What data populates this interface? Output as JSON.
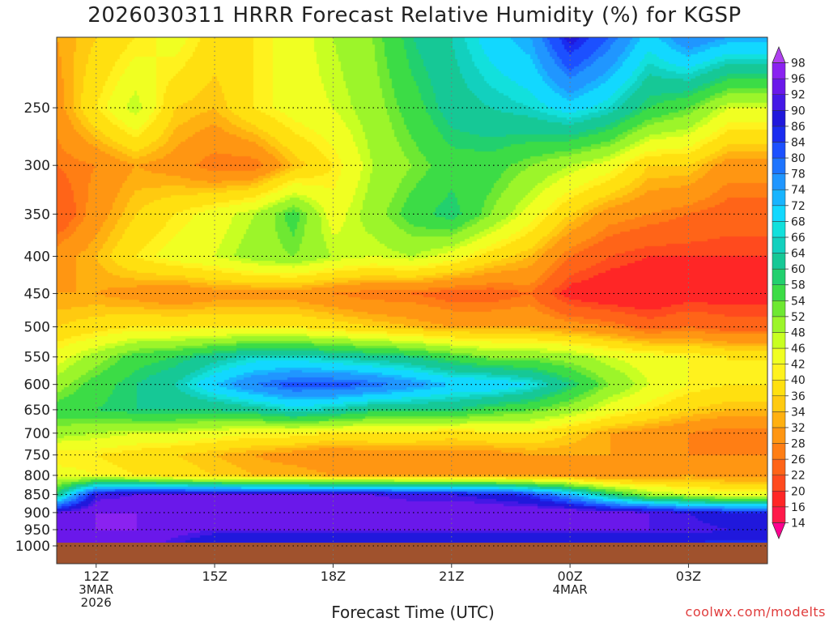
{
  "header": {
    "title": "2026030311 HRRR Forecast Relative Humidity (%) for KGSP"
  },
  "footer": {
    "credit": "coolwx.com/modelts"
  },
  "chart_data": {
    "type": "heatmap",
    "title": "2026030311 HRRR Forecast Relative Humidity (%) for KGSP",
    "xlabel": "Forecast Time (UTC)",
    "ylabel": "",
    "x_hours": [
      11,
      12,
      13,
      14,
      15,
      16,
      17,
      18,
      19,
      20,
      21,
      22,
      23,
      24,
      25,
      26,
      27,
      28
    ],
    "x_ticks": [
      {
        "hour": 12,
        "lines": [
          "12Z",
          "3MAR",
          "2026"
        ]
      },
      {
        "hour": 15,
        "lines": [
          "15Z"
        ]
      },
      {
        "hour": 18,
        "lines": [
          "18Z"
        ]
      },
      {
        "hour": 21,
        "lines": [
          "21Z"
        ]
      },
      {
        "hour": 24,
        "lines": [
          "00Z",
          "4MAR"
        ]
      },
      {
        "hour": 27,
        "lines": [
          "03Z"
        ]
      }
    ],
    "y_ticks": [
      250,
      300,
      350,
      400,
      450,
      500,
      550,
      600,
      650,
      700,
      750,
      800,
      850,
      900,
      950,
      1000
    ],
    "p_levels": [
      200,
      250,
      300,
      350,
      400,
      450,
      500,
      550,
      600,
      650,
      700,
      750,
      800,
      850,
      900,
      950,
      1000
    ],
    "ylim": [
      200,
      1000
    ],
    "xlim": [
      11,
      29
    ],
    "ground_below_hpa": 990,
    "grid": true,
    "values": [
      [
        32,
        36,
        40,
        44,
        38,
        40,
        44,
        48,
        52,
        60,
        64,
        70,
        74,
        88,
        80,
        70,
        78,
        74
      ],
      [
        30,
        40,
        48,
        36,
        34,
        40,
        44,
        46,
        50,
        56,
        62,
        64,
        66,
        70,
        66,
        58,
        54,
        46
      ],
      [
        26,
        28,
        32,
        30,
        26,
        26,
        34,
        40,
        48,
        52,
        56,
        56,
        52,
        48,
        44,
        36,
        36,
        30
      ],
      [
        22,
        30,
        36,
        40,
        44,
        48,
        56,
        44,
        50,
        56,
        60,
        52,
        44,
        36,
        30,
        28,
        26,
        24
      ],
      [
        30,
        34,
        40,
        44,
        46,
        50,
        52,
        48,
        46,
        48,
        44,
        38,
        34,
        26,
        22,
        20,
        20,
        20
      ],
      [
        32,
        32,
        30,
        28,
        30,
        30,
        30,
        28,
        26,
        26,
        24,
        24,
        26,
        18,
        16,
        16,
        18,
        18
      ],
      [
        36,
        38,
        40,
        40,
        40,
        40,
        40,
        38,
        36,
        34,
        32,
        32,
        32,
        30,
        28,
        24,
        26,
        24
      ],
      [
        44,
        50,
        56,
        58,
        62,
        66,
        66,
        64,
        62,
        60,
        56,
        52,
        52,
        50,
        46,
        44,
        42,
        40
      ],
      [
        50,
        56,
        60,
        64,
        72,
        78,
        82,
        82,
        80,
        76,
        72,
        72,
        68,
        60,
        52,
        46,
        42,
        40
      ],
      [
        56,
        58,
        60,
        60,
        60,
        62,
        66,
        64,
        60,
        60,
        60,
        56,
        54,
        50,
        44,
        40,
        36,
        34
      ],
      [
        50,
        48,
        46,
        46,
        44,
        42,
        42,
        40,
        40,
        40,
        38,
        40,
        40,
        36,
        32,
        30,
        28,
        26
      ],
      [
        40,
        40,
        38,
        36,
        34,
        32,
        30,
        28,
        30,
        30,
        30,
        30,
        32,
        32,
        32,
        30,
        28,
        28
      ],
      [
        44,
        42,
        40,
        38,
        36,
        34,
        34,
        32,
        32,
        32,
        32,
        32,
        32,
        30,
        28,
        30,
        32,
        30
      ],
      [
        60,
        90,
        92,
        92,
        92,
        92,
        92,
        92,
        92,
        90,
        90,
        88,
        84,
        74,
        60,
        50,
        46,
        44
      ],
      [
        92,
        96,
        96,
        96,
        96,
        96,
        96,
        96,
        96,
        96,
        96,
        96,
        96,
        96,
        94,
        92,
        90,
        86
      ],
      [
        94,
        96,
        96,
        94,
        92,
        92,
        92,
        92,
        92,
        92,
        92,
        92,
        92,
        92,
        92,
        92,
        92,
        90
      ],
      [
        96,
        96,
        94,
        90,
        84,
        84,
        84,
        84,
        84,
        84,
        84,
        84,
        84,
        84,
        84,
        84,
        84,
        84
      ]
    ],
    "colorbar": {
      "levels": [
        14,
        16,
        20,
        22,
        26,
        28,
        32,
        34,
        36,
        40,
        42,
        46,
        48,
        52,
        54,
        58,
        60,
        64,
        66,
        68,
        72,
        74,
        78,
        80,
        84,
        86,
        90,
        92,
        96,
        98
      ],
      "colors": [
        "#ff0090",
        "#ff1a4a",
        "#ff2626",
        "#ff4a1e",
        "#ff6418",
        "#ff7e14",
        "#ff9612",
        "#ffb010",
        "#ffca10",
        "#ffe010",
        "#fff21e",
        "#f0ff22",
        "#c8ff22",
        "#9cf52a",
        "#6ee832",
        "#3cdc46",
        "#22d06e",
        "#16c896",
        "#12d0be",
        "#12e0dc",
        "#12d8ff",
        "#18b4ff",
        "#2096ff",
        "#1e74ff",
        "#1c50ff",
        "#1a2cf0",
        "#2018dc",
        "#4418e6",
        "#6a18ea",
        "#8a22f0",
        "#b040f0"
      ]
    }
  }
}
